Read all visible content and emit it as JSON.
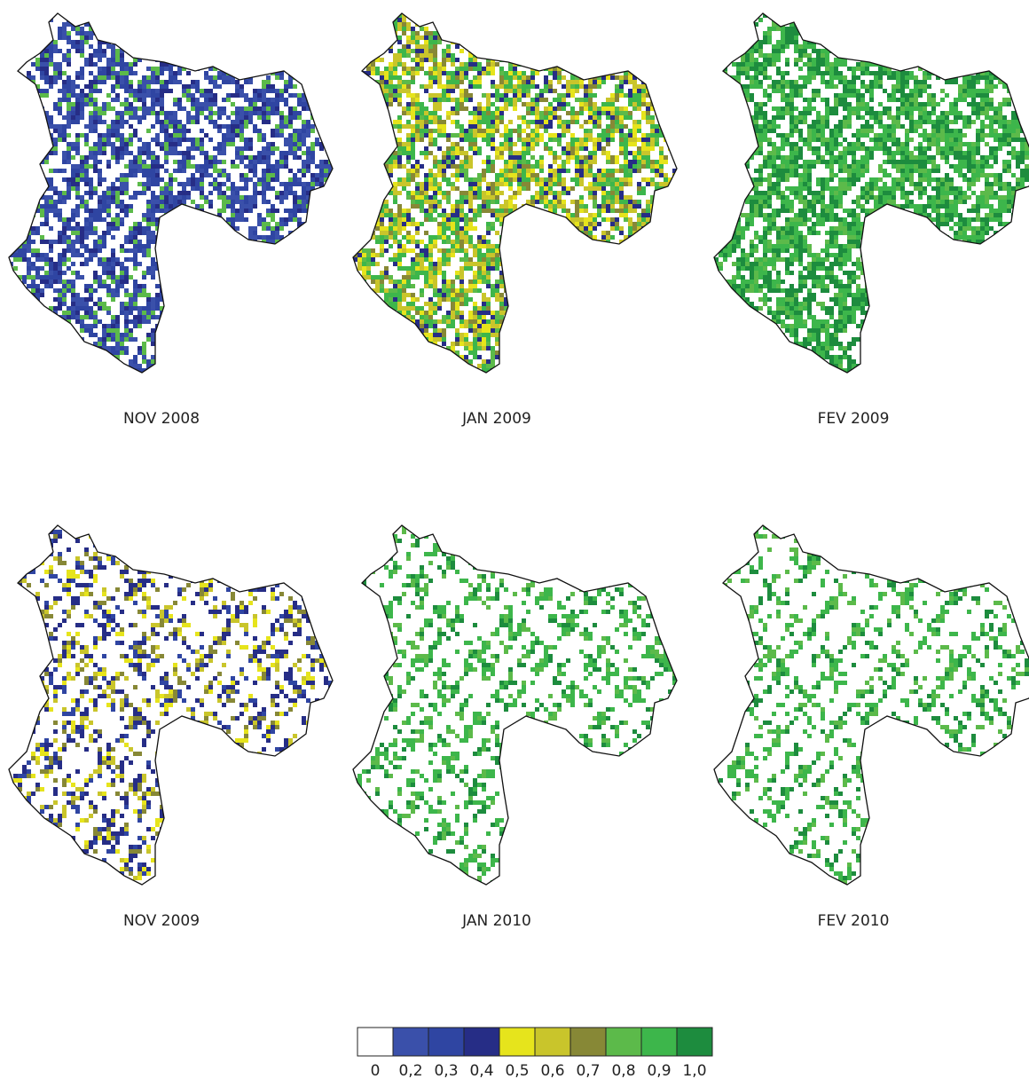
{
  "panels": [
    {
      "label": "NOV 2008"
    },
    {
      "label": "JAN 2009"
    },
    {
      "label": "FEV 2009"
    },
    {
      "label": "NOV 2009"
    },
    {
      "label": "JAN 2010"
    },
    {
      "label": "FEV 2010"
    }
  ],
  "legend": {
    "bins": [
      {
        "value": 0,
        "label": "0",
        "color": "#ffffff"
      },
      {
        "value": 0.2,
        "label": "0,2",
        "color": "#3a50aa"
      },
      {
        "value": 0.3,
        "label": "0,3",
        "color": "#2f45a2"
      },
      {
        "value": 0.4,
        "label": "0,4",
        "color": "#262d86"
      },
      {
        "value": 0.5,
        "label": "0,5",
        "color": "#e6e41c"
      },
      {
        "value": 0.6,
        "label": "0,6",
        "color": "#c9c52b"
      },
      {
        "value": 0.7,
        "label": "0,7",
        "color": "#878836"
      },
      {
        "value": 0.8,
        "label": "0,8",
        "color": "#5cba4a"
      },
      {
        "value": 0.9,
        "label": "0,9",
        "color": "#3db64b"
      },
      {
        "value": 1.0,
        "label": "1,0",
        "color": "#1d8c3e"
      }
    ]
  }
}
